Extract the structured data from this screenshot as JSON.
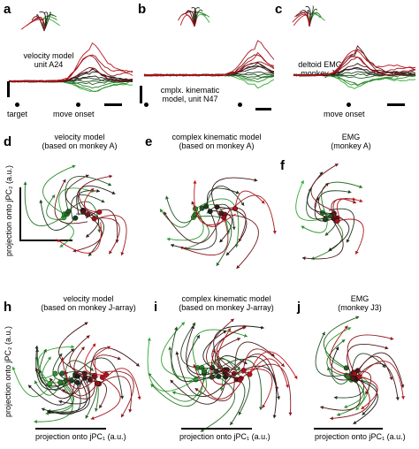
{
  "panels": {
    "a": {
      "letter": "a",
      "title": "velocity model\nunit A24",
      "markers": [
        "target",
        "move onset"
      ]
    },
    "b": {
      "letter": "b",
      "title": "cmplx. kinematic\nmodel, unit N47"
    },
    "c": {
      "letter": "c",
      "title": "deltoid EMG\nmonkey J3",
      "markers": [
        "move onset"
      ]
    },
    "d": {
      "letter": "d",
      "title": "velocity model\n(based on monkey A)"
    },
    "e": {
      "letter": "e",
      "title": "complex kinematic model\n(based on monkey A)"
    },
    "f": {
      "letter": "f",
      "title": "EMG\n(monkey A)"
    },
    "h": {
      "letter": "h",
      "title": "velocity model\n(based on monkey J-array)"
    },
    "i": {
      "letter": "i",
      "title": "complex kinematic model\n(based on monkey J-array)"
    },
    "j": {
      "letter": "j",
      "title": "EMG\n(monkey J3)"
    }
  },
  "axes": {
    "y_label_top": "projection onto jPC₂ (a.u.)",
    "y_label_bottom": "projection onto jPC₂ (a.u.)",
    "x_label": "projection onto jPC₁ (a.u.)"
  },
  "colors": {
    "red": "#c0121b",
    "green": "#2ea82e",
    "dark": "#1a1a1a",
    "light_green": "#7fd36b"
  }
}
